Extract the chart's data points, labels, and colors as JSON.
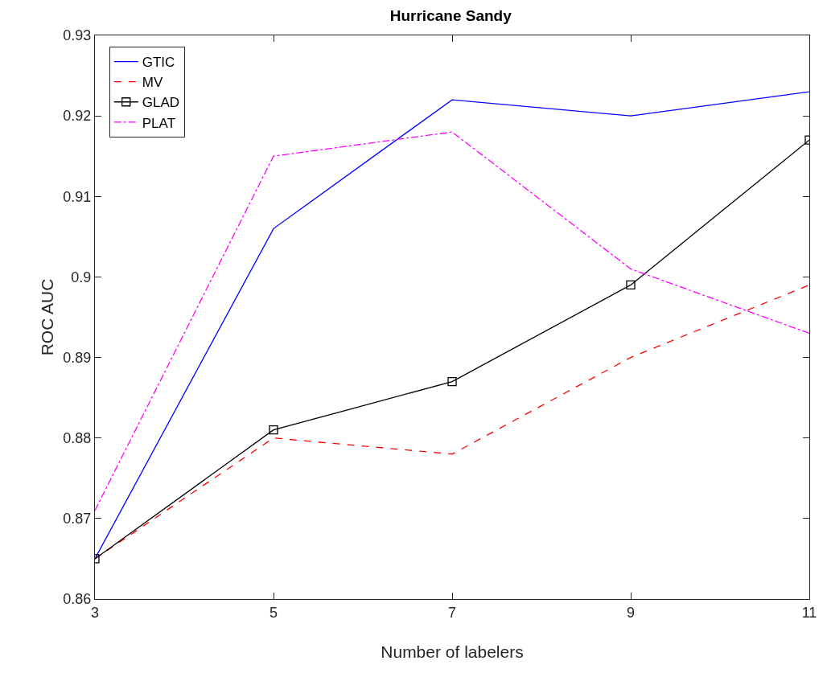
{
  "chart_data": {
    "type": "line",
    "title": "Hurricane Sandy",
    "xlabel": "Number of labelers",
    "ylabel": "ROC AUC",
    "x": [
      3,
      5,
      7,
      9,
      11
    ],
    "series": [
      {
        "name": "GTIC",
        "color": "#0000ff",
        "line_style": "solid",
        "marker": "none",
        "values": [
          0.865,
          0.906,
          0.922,
          0.92,
          0.923
        ]
      },
      {
        "name": "MV",
        "color": "#ff0000",
        "line_style": "dashed",
        "marker": "none",
        "values": [
          0.865,
          0.88,
          0.878,
          0.89,
          0.899
        ]
      },
      {
        "name": "GLAD",
        "color": "#000000",
        "line_style": "solid",
        "marker": "square",
        "values": [
          0.865,
          0.881,
          0.887,
          0.899,
          0.917
        ]
      },
      {
        "name": "PLAT",
        "color": "#ff00ff",
        "line_style": "dashdot",
        "marker": "none",
        "values": [
          0.871,
          0.915,
          0.918,
          0.901,
          0.893
        ]
      }
    ],
    "xlim": [
      3,
      11
    ],
    "xticks": [
      3,
      5,
      7,
      9,
      11
    ],
    "ylim": [
      0.86,
      0.93
    ],
    "yticks": [
      0.86,
      0.87,
      0.88,
      0.89,
      0.9,
      0.91,
      0.92,
      0.93
    ],
    "grid": false,
    "legend": "top left"
  }
}
